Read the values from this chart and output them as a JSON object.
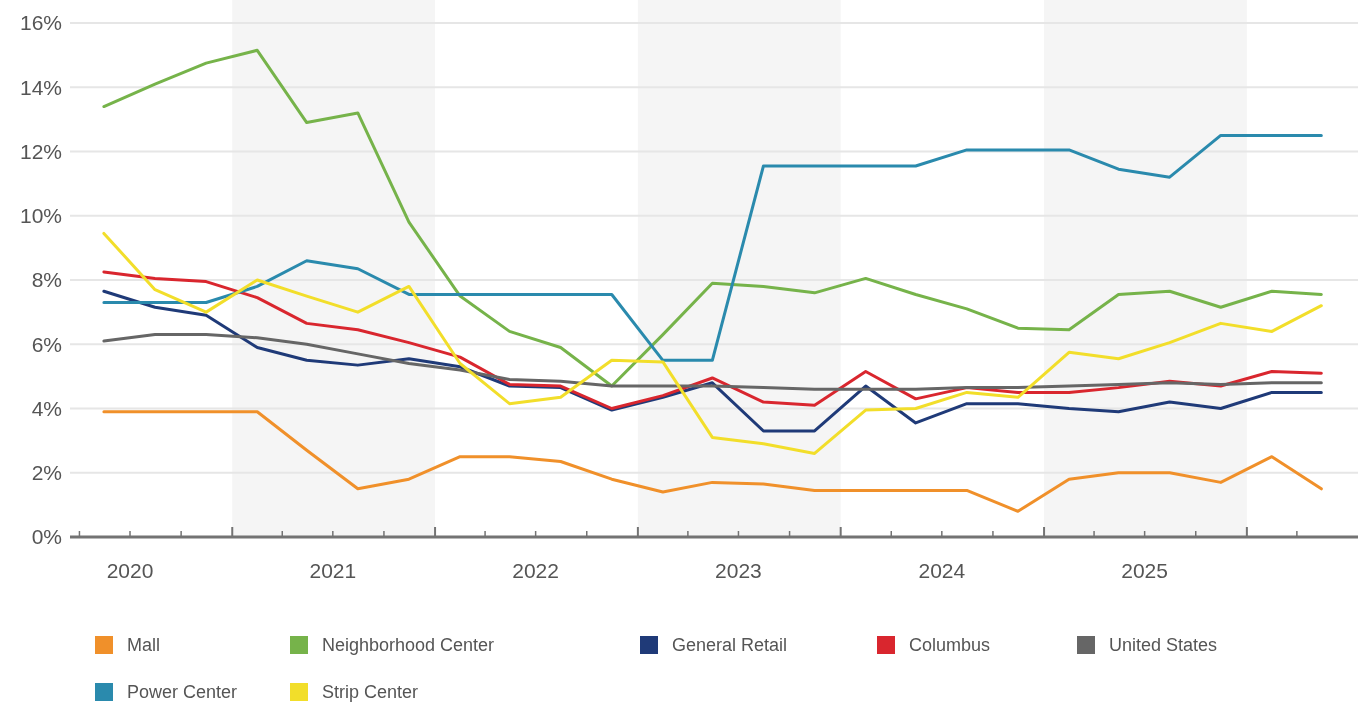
{
  "chart_data": {
    "type": "line",
    "x": [
      "2020-05-15",
      "2020-08-15",
      "2020-11-15",
      "2021-02-15",
      "2021-05-15",
      "2021-08-15",
      "2021-11-15",
      "2022-02-15",
      "2022-05-15",
      "2022-08-15",
      "2022-11-15",
      "2023-02-15",
      "2023-05-15",
      "2023-08-15",
      "2023-11-15",
      "2024-02-15",
      "2024-05-15",
      "2024-08-15",
      "2024-11-15",
      "2025-02-15",
      "2025-05-15",
      "2025-08-15",
      "2025-11-15",
      "2026-02-15",
      "2026-05-15"
    ],
    "series": [
      {
        "name": "Mall",
        "color": "#f0902a",
        "values": [
          3.9,
          3.9,
          3.9,
          3.9,
          2.7,
          1.5,
          1.8,
          2.5,
          2.5,
          2.35,
          1.8,
          1.4,
          1.7,
          1.65,
          1.45,
          1.45,
          1.45,
          1.45,
          0.8,
          1.8,
          2.0,
          2.0,
          1.7,
          2.5,
          1.5
        ]
      },
      {
        "name": "Neighborhood Center",
        "color": "#76b34a",
        "values": [
          13.4,
          14.1,
          14.75,
          15.15,
          12.9,
          13.2,
          9.8,
          7.5,
          6.4,
          5.9,
          4.7,
          6.3,
          7.9,
          7.8,
          7.6,
          8.05,
          7.55,
          7.1,
          6.5,
          6.45,
          7.55,
          7.65,
          7.15,
          7.65,
          7.55
        ]
      },
      {
        "name": "General Retail",
        "color": "#1f3a78",
        "values": [
          7.65,
          7.15,
          6.9,
          5.9,
          5.5,
          5.35,
          5.55,
          5.3,
          4.7,
          4.65,
          3.95,
          4.35,
          4.8,
          3.3,
          3.3,
          4.7,
          3.55,
          4.15,
          4.15,
          4.0,
          3.9,
          4.2,
          4.0,
          4.5,
          4.5
        ]
      },
      {
        "name": "Columbus",
        "color": "#d9262e",
        "values": [
          8.25,
          8.05,
          7.95,
          7.45,
          6.65,
          6.45,
          6.05,
          5.6,
          4.75,
          4.7,
          4.0,
          4.4,
          4.95,
          4.2,
          4.1,
          5.15,
          4.3,
          4.65,
          4.5,
          4.5,
          4.65,
          4.85,
          4.7,
          5.15,
          5.1
        ]
      },
      {
        "name": "United States",
        "color": "#666666",
        "values": [
          6.1,
          6.3,
          6.3,
          6.2,
          6.0,
          5.7,
          5.4,
          5.2,
          4.9,
          4.85,
          4.7,
          4.7,
          4.7,
          4.65,
          4.6,
          4.6,
          4.6,
          4.65,
          4.65,
          4.7,
          4.75,
          4.8,
          4.75,
          4.8,
          4.8
        ]
      },
      {
        "name": "Power Center",
        "color": "#2a8aad",
        "values": [
          7.3,
          7.3,
          7.3,
          7.8,
          8.6,
          8.35,
          7.55,
          7.55,
          7.55,
          7.55,
          7.55,
          5.5,
          5.5,
          11.55,
          11.55,
          11.55,
          11.55,
          12.05,
          12.05,
          12.05,
          11.45,
          11.2,
          12.5,
          12.5,
          12.5
        ]
      },
      {
        "name": "Strip Center",
        "color": "#f2de2a",
        "values": [
          9.45,
          7.7,
          7.0,
          8.0,
          7.5,
          7.0,
          7.8,
          5.4,
          4.15,
          4.35,
          5.5,
          5.45,
          3.1,
          2.9,
          2.6,
          3.95,
          4.0,
          4.5,
          4.35,
          5.75,
          5.55,
          6.05,
          6.65,
          6.4,
          7.2
        ]
      }
    ],
    "xlim": [
      "2020-03-15",
      "2026-07-20"
    ],
    "xticks": [
      {
        "value": "2020-04-01",
        "label": null
      },
      {
        "value": "2020-07-01",
        "label": "2020"
      },
      {
        "value": "2020-10-01",
        "label": null
      },
      {
        "value": "2021-01-01",
        "label": null
      },
      {
        "value": "2021-04-01",
        "label": null
      },
      {
        "value": "2021-07-01",
        "label": "2021"
      },
      {
        "value": "2021-10-01",
        "label": null
      },
      {
        "value": "2022-01-01",
        "label": null
      },
      {
        "value": "2022-04-01",
        "label": null
      },
      {
        "value": "2022-07-01",
        "label": "2022"
      },
      {
        "value": "2022-10-01",
        "label": null
      },
      {
        "value": "2023-01-01",
        "label": null
      },
      {
        "value": "2023-04-01",
        "label": null
      },
      {
        "value": "2023-07-01",
        "label": "2023"
      },
      {
        "value": "2023-10-01",
        "label": null
      },
      {
        "value": "2024-01-01",
        "label": null
      },
      {
        "value": "2024-04-01",
        "label": null
      },
      {
        "value": "2024-07-01",
        "label": "2024"
      },
      {
        "value": "2024-10-01",
        "label": null
      },
      {
        "value": "2025-01-01",
        "label": null
      },
      {
        "value": "2025-04-01",
        "label": null
      },
      {
        "value": "2025-07-01",
        "label": "2025"
      },
      {
        "value": "2025-10-01",
        "label": null
      },
      {
        "value": "2026-01-01",
        "label": null
      },
      {
        "value": "2026-04-01",
        "label": null
      }
    ],
    "ylim": [
      0,
      16
    ],
    "yticks": [
      {
        "value": 0,
        "label": "0%"
      },
      {
        "value": 2,
        "label": "2%"
      },
      {
        "value": 4,
        "label": "4%"
      },
      {
        "value": 6,
        "label": "6%"
      },
      {
        "value": 8,
        "label": "8%"
      },
      {
        "value": 10,
        "label": "10%"
      },
      {
        "value": 12,
        "label": "12%"
      },
      {
        "value": 14,
        "label": "14%"
      },
      {
        "value": 16,
        "label": "16%"
      }
    ],
    "bands": [
      {
        "axis": "x",
        "from": "2021-01-01",
        "to": "2022-01-01",
        "color": "#f5f5f5"
      },
      {
        "axis": "x",
        "from": "2023-01-01",
        "to": "2024-01-01",
        "color": "#f5f5f5"
      },
      {
        "axis": "x",
        "from": "2025-01-01",
        "to": "2026-01-01",
        "color": "#f5f5f5"
      }
    ],
    "grid": "y",
    "legend": "bottom",
    "marker": "none",
    "line_style": "solid"
  }
}
